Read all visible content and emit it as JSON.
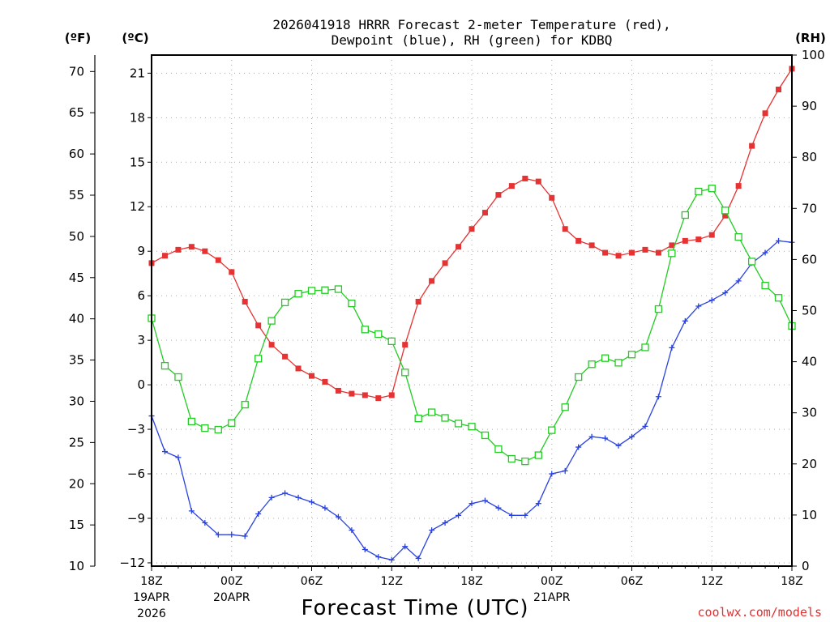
{
  "chart_data": {
    "type": "line",
    "title_line1": "2026041918 HRRR Forecast 2-meter Temperature (red),",
    "title_line2": "Dewpoint (blue), RH (green) for KDBQ",
    "xlabel": "Forecast Time (UTC)",
    "unit_f": "(ºF)",
    "unit_c": "(ºC)",
    "unit_rh": "(RH)",
    "credit": "coolwx.com/models",
    "xlim": [
      0,
      48
    ],
    "x_ticks": [
      {
        "x": 0,
        "label": "18Z",
        "sub1": "19APR",
        "sub2": "2026"
      },
      {
        "x": 6,
        "label": "00Z",
        "sub1": "20APR",
        "sub2": ""
      },
      {
        "x": 12,
        "label": "06Z",
        "sub1": "",
        "sub2": ""
      },
      {
        "x": 18,
        "label": "12Z",
        "sub1": "",
        "sub2": ""
      },
      {
        "x": 24,
        "label": "18Z",
        "sub1": "",
        "sub2": ""
      },
      {
        "x": 30,
        "label": "00Z",
        "sub1": "21APR",
        "sub2": ""
      },
      {
        "x": 36,
        "label": "06Z",
        "sub1": "",
        "sub2": ""
      },
      {
        "x": 42,
        "label": "12Z",
        "sub1": "",
        "sub2": ""
      },
      {
        "x": 48,
        "label": "18Z",
        "sub1": "",
        "sub2": ""
      }
    ],
    "ylim_c": [
      -12.22,
      22.22
    ],
    "y_ticks_c": [
      "-12",
      "-9",
      "-6",
      "-3",
      "0",
      "3",
      "6",
      "9",
      "12",
      "15",
      "18",
      "21"
    ],
    "y_ticks_f": [
      "10",
      "15",
      "20",
      "25",
      "30",
      "35",
      "40",
      "45",
      "50",
      "55",
      "60",
      "65",
      "70"
    ],
    "ylim_rh": [
      0,
      100
    ],
    "y_ticks_rh": [
      "0",
      "10",
      "20",
      "30",
      "40",
      "50",
      "60",
      "70",
      "80",
      "90",
      "100"
    ],
    "series": [
      {
        "name": "2-meter Temperature",
        "units": "C",
        "color": "#e63232",
        "marker": "filled-square",
        "values": [
          8.2,
          8.7,
          9.1,
          9.3,
          9.0,
          8.4,
          7.6,
          5.6,
          4.0,
          2.7,
          1.9,
          1.1,
          0.6,
          0.2,
          -0.4,
          -0.6,
          -0.7,
          -0.9,
          -0.7,
          2.7,
          5.6,
          7.0,
          8.2,
          9.3,
          10.5,
          11.6,
          12.8,
          13.4,
          13.9,
          13.7,
          12.6,
          10.5,
          9.7,
          9.4,
          8.9,
          8.7,
          8.9,
          9.1,
          8.9,
          9.4,
          9.7,
          9.8,
          10.1,
          11.4,
          13.4,
          16.1,
          18.3,
          19.9,
          21.3
        ]
      },
      {
        "name": "Dewpoint",
        "units": "C",
        "color": "#2a42e0",
        "marker": "plus",
        "values": [
          -2.1,
          -4.5,
          -4.9,
          -8.5,
          -9.3,
          -10.1,
          -10.1,
          -10.2,
          -8.7,
          -7.6,
          -7.3,
          -7.6,
          -7.9,
          -8.3,
          -8.9,
          -9.8,
          -11.1,
          -11.6,
          -11.8,
          -10.9,
          -11.7,
          -9.8,
          -9.3,
          -8.8,
          -8.0,
          -7.8,
          -8.3,
          -8.8,
          -8.8,
          -8.0,
          -6.0,
          -5.8,
          -4.2,
          -3.5,
          -3.6,
          -4.1,
          -3.5,
          -2.8,
          -0.8,
          2.5,
          4.3,
          5.3,
          5.7,
          6.2,
          7.0,
          8.2,
          8.9,
          9.7,
          9.6
        ]
      },
      {
        "name": "RH",
        "units": "%",
        "color": "#22cc22",
        "marker": "open-square",
        "values": [
          48.5,
          39.2,
          37.0,
          28.3,
          27.0,
          26.7,
          28.0,
          31.6,
          40.6,
          48.0,
          51.6,
          53.3,
          53.9,
          54.0,
          54.2,
          51.4,
          46.3,
          45.4,
          44.0,
          37.9,
          28.9,
          30.1,
          29.0,
          27.9,
          27.3,
          25.6,
          22.9,
          21.0,
          20.5,
          21.7,
          26.6,
          31.1,
          37.0,
          39.5,
          40.7,
          39.8,
          41.4,
          42.8,
          50.3,
          61.2,
          68.7,
          73.3,
          73.9,
          69.6,
          64.4,
          59.6,
          54.9,
          52.5,
          47.0
        ]
      }
    ]
  }
}
